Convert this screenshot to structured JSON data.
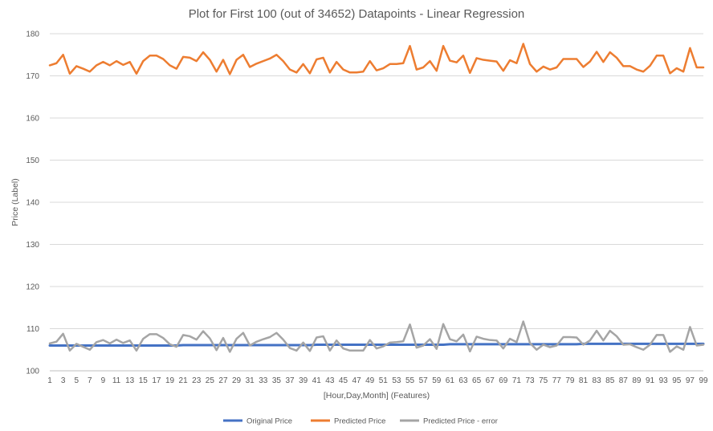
{
  "chart_data": {
    "type": "line",
    "title": "Plot for First 100 (out of 34652) Datapoints - Linear Regression",
    "xlabel": "[Hour,Day,Month] (Features)",
    "ylabel": "Price (Label)",
    "ylim": [
      100,
      180
    ],
    "yticks": [
      100,
      110,
      120,
      130,
      140,
      150,
      160,
      170,
      180
    ],
    "x": [
      1,
      2,
      3,
      4,
      5,
      6,
      7,
      8,
      9,
      10,
      11,
      12,
      13,
      14,
      15,
      16,
      17,
      18,
      19,
      20,
      21,
      22,
      23,
      24,
      25,
      26,
      27,
      28,
      29,
      30,
      31,
      32,
      33,
      34,
      35,
      36,
      37,
      38,
      39,
      40,
      41,
      42,
      43,
      44,
      45,
      46,
      47,
      48,
      49,
      50,
      51,
      52,
      53,
      54,
      55,
      56,
      57,
      58,
      59,
      60,
      61,
      62,
      63,
      64,
      65,
      66,
      67,
      68,
      69,
      70,
      71,
      72,
      73,
      74,
      75,
      76,
      77,
      78,
      79,
      80,
      81,
      82,
      83,
      84,
      85,
      86,
      87,
      88,
      89,
      90,
      91,
      92,
      93,
      94,
      95,
      96,
      97,
      98,
      99
    ],
    "xtick_labels": [
      "1",
      "3",
      "5",
      "7",
      "9",
      "11",
      "13",
      "15",
      "17",
      "19",
      "21",
      "23",
      "25",
      "27",
      "29",
      "31",
      "33",
      "35",
      "37",
      "39",
      "41",
      "43",
      "45",
      "47",
      "49",
      "51",
      "53",
      "55",
      "57",
      "59",
      "61",
      "63",
      "65",
      "67",
      "69",
      "71",
      "73",
      "75",
      "77",
      "79",
      "81",
      "83",
      "85",
      "87",
      "89",
      "91",
      "93",
      "95",
      "97",
      "99"
    ],
    "grid": true,
    "legend_position": "bottom",
    "series": [
      {
        "name": "Original Price",
        "color": "#4472c4",
        "values": [
          106,
          106,
          106,
          106,
          106,
          106,
          106,
          106,
          106,
          106,
          106,
          106,
          106,
          106,
          106,
          106,
          106,
          106,
          106,
          106,
          106.1,
          106.1,
          106.1,
          106.1,
          106.1,
          106.1,
          106.1,
          106.1,
          106.1,
          106.1,
          106.1,
          106.1,
          106.1,
          106.1,
          106.1,
          106.1,
          106.1,
          106.1,
          106.1,
          106.1,
          106.2,
          106.2,
          106.2,
          106.2,
          106.2,
          106.2,
          106.2,
          106.2,
          106.2,
          106.2,
          106.2,
          106.2,
          106.2,
          106.2,
          106.2,
          106.2,
          106.2,
          106.2,
          106.2,
          106.2,
          106.3,
          106.3,
          106.3,
          106.3,
          106.3,
          106.3,
          106.3,
          106.3,
          106.3,
          106.3,
          106.3,
          106.3,
          106.3,
          106.3,
          106.3,
          106.3,
          106.3,
          106.3,
          106.3,
          106.3,
          106.4,
          106.4,
          106.4,
          106.4,
          106.4,
          106.4,
          106.4,
          106.4,
          106.4,
          106.4,
          106.4,
          106.4,
          106.4,
          106.4,
          106.4,
          106.4,
          106.4,
          106.4,
          106.4
        ]
      },
      {
        "name": "Predicted Price",
        "color": "#ed7d31",
        "values": [
          172.5,
          173,
          175,
          170.5,
          172.3,
          171.7,
          171,
          172.5,
          173.3,
          172.5,
          173.5,
          172.6,
          173.3,
          170.5,
          173.5,
          174.8,
          174.8,
          174,
          172.5,
          171.7,
          174.5,
          174.3,
          173.5,
          175.6,
          173.8,
          171,
          173.8,
          170.4,
          173.8,
          175,
          172.1,
          172.9,
          173.5,
          174.1,
          175,
          173.5,
          171.5,
          170.8,
          172.8,
          170.6,
          173.9,
          174.3,
          170.8,
          173.3,
          171.5,
          170.8,
          170.8,
          171,
          173.5,
          171.3,
          171.8,
          172.8,
          172.8,
          173,
          177.1,
          171.5,
          172,
          173.5,
          171.2,
          177.1,
          173.6,
          173.2,
          174.8,
          170.7,
          174.2,
          173.8,
          173.6,
          173.4,
          171.2,
          173.7,
          173,
          177.6,
          172.8,
          171,
          172.2,
          171.5,
          172,
          174,
          174,
          174,
          172.1,
          173.4,
          175.7,
          173.3,
          175.6,
          174.3,
          172.3,
          172.3,
          171.5,
          171,
          172.4,
          174.8,
          174.8,
          170.6,
          171.8,
          171,
          176.6,
          172,
          172
        ]
      },
      {
        "name": "Predicted Price - error",
        "color": "#a5a5a5",
        "values": [
          106.5,
          106.9,
          108.8,
          104.8,
          106.4,
          105.7,
          105,
          106.8,
          107.3,
          106.5,
          107.4,
          106.6,
          107.2,
          104.8,
          107.6,
          108.7,
          108.7,
          107.8,
          106.3,
          105.7,
          108.5,
          108.2,
          107.4,
          109.4,
          107.7,
          104.9,
          107.8,
          104.5,
          107.6,
          109,
          106,
          106.9,
          107.5,
          108,
          109,
          107.4,
          105.4,
          104.8,
          106.7,
          104.7,
          107.9,
          108.2,
          104.8,
          107.2,
          105.3,
          104.8,
          104.8,
          104.8,
          107.3,
          105.3,
          105.8,
          106.7,
          106.8,
          107,
          111,
          105.5,
          106,
          107.5,
          105.2,
          111.1,
          107.5,
          107,
          108.6,
          104.6,
          108.1,
          107.6,
          107.3,
          107.2,
          105.3,
          107.6,
          106.8,
          111.7,
          106.6,
          105,
          106.2,
          105.6,
          106,
          108,
          108,
          107.9,
          106.2,
          107.2,
          109.5,
          107.2,
          109.5,
          108.2,
          106.2,
          106.3,
          105.6,
          105,
          106.2,
          108.5,
          108.5,
          104.5,
          105.8,
          105,
          110.4,
          106,
          106.2
        ]
      }
    ]
  }
}
